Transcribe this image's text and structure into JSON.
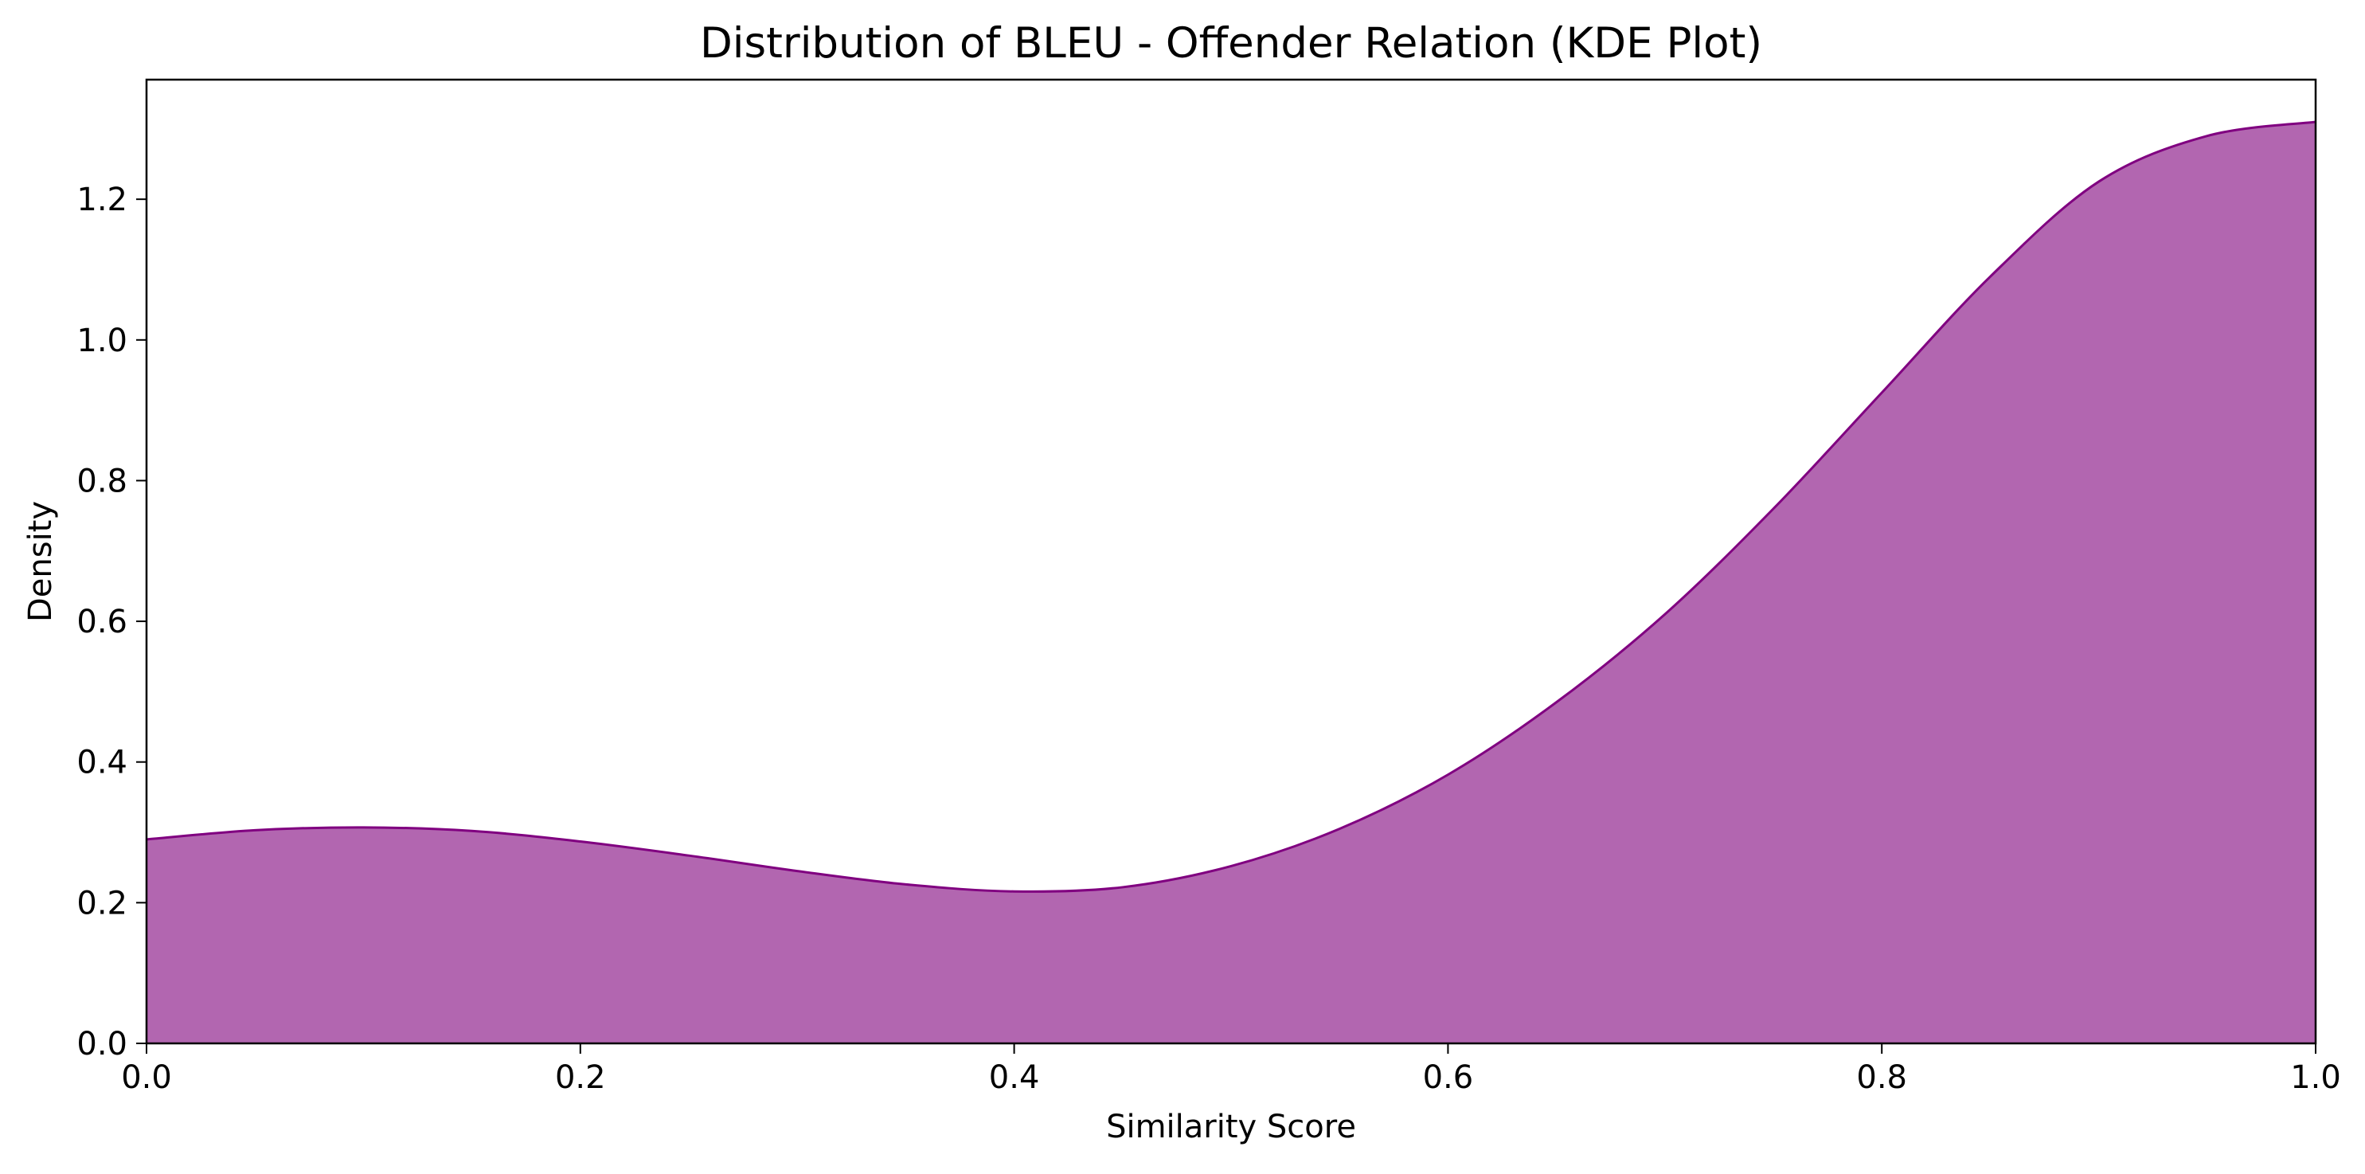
{
  "chart_data": {
    "type": "area",
    "title": "Distribution of BLEU - Offender Relation (KDE Plot)",
    "xlabel": "Similarity Score",
    "ylabel": "Density",
    "xlim": [
      0.0,
      1.0
    ],
    "ylim": [
      0.0,
      1.37
    ],
    "x_ticks": [
      0.0,
      0.2,
      0.4,
      0.6,
      0.8,
      1.0
    ],
    "x_tick_labels": [
      "0.0",
      "0.2",
      "0.4",
      "0.6",
      "0.8",
      "1.0"
    ],
    "y_ticks": [
      0.0,
      0.2,
      0.4,
      0.6,
      0.8,
      1.0,
      1.2
    ],
    "y_tick_labels": [
      "0.0",
      "0.2",
      "0.4",
      "0.6",
      "0.8",
      "1.0",
      "1.2"
    ],
    "grid": false,
    "series": [
      {
        "x": [
          0.0,
          0.05,
          0.1,
          0.15,
          0.2,
          0.25,
          0.3,
          0.35,
          0.4,
          0.45,
          0.5,
          0.55,
          0.6,
          0.65,
          0.7,
          0.75,
          0.8,
          0.85,
          0.9,
          0.95,
          1.0
        ],
        "y": [
          0.29,
          0.303,
          0.307,
          0.302,
          0.287,
          0.267,
          0.245,
          0.226,
          0.216,
          0.222,
          0.252,
          0.305,
          0.382,
          0.485,
          0.61,
          0.76,
          0.925,
          1.09,
          1.225,
          1.29,
          1.31
        ]
      }
    ],
    "fill_color": "#b266b0",
    "line_color": "#800080"
  }
}
